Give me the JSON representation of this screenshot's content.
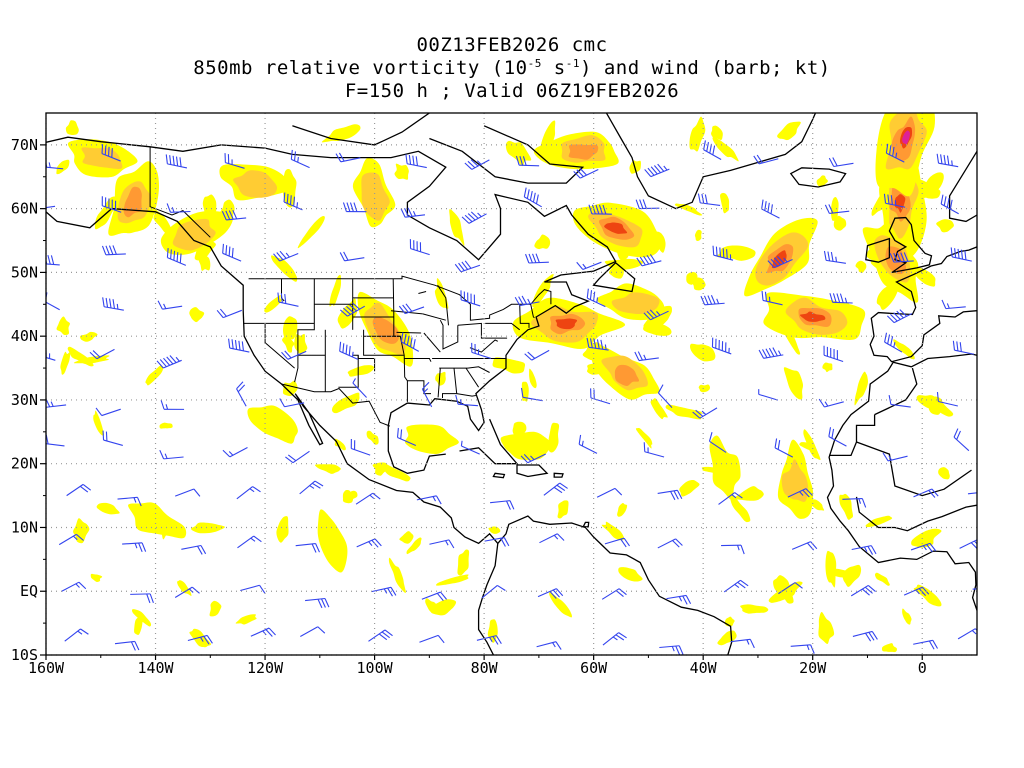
{
  "header": {
    "line1": "00Z13FEB2026 cmc",
    "line2_pre": "850mb relative vorticity (10",
    "line2_exp1": "-5",
    "line2_mid": " s",
    "line2_exp2": "-1",
    "line2_post": ") and wind (barb; kt)",
    "line3": "F=150 h ; Valid 06Z19FEB2026"
  },
  "axes": {
    "lat_labels": [
      "70N",
      "60N",
      "50N",
      "40N",
      "30N",
      "20N",
      "10N",
      "EQ",
      "10S"
    ],
    "lat_values": [
      70,
      60,
      50,
      40,
      30,
      20,
      10,
      0,
      -10
    ],
    "lon_labels": [
      "160W",
      "140W",
      "120W",
      "100W",
      "80W",
      "60W",
      "40W",
      "20W",
      "0"
    ],
    "lon_values": [
      -160,
      -140,
      -120,
      -100,
      -80,
      -60,
      -40,
      -20,
      0
    ],
    "lon_range": [
      -160,
      10
    ],
    "lat_range": [
      -10,
      75
    ],
    "grid": "dotted"
  },
  "colors": {
    "shade_light": "#ffff00",
    "shade_mid": "#ffcc33",
    "shade_orange": "#ff9933",
    "shade_red": "#ee4411",
    "shade_magenta": "#dd2299",
    "barb": "#3344ee",
    "coast": "#000000",
    "grid": "#999999"
  },
  "vorticity_maxima": [
    {
      "lon": -150,
      "lat": 68,
      "level": 2
    },
    {
      "lon": -144,
      "lat": 61,
      "level": 3
    },
    {
      "lon": -133,
      "lat": 56,
      "level": 2
    },
    {
      "lon": -122,
      "lat": 64,
      "level": 2
    },
    {
      "lon": -100,
      "lat": 62,
      "level": 2
    },
    {
      "lon": -98,
      "lat": 41,
      "level": 3
    },
    {
      "lon": -65,
      "lat": 42,
      "level": 4
    },
    {
      "lon": -62,
      "lat": 69,
      "level": 3
    },
    {
      "lon": -56,
      "lat": 57,
      "level": 4
    },
    {
      "lon": -52,
      "lat": 45,
      "level": 2
    },
    {
      "lon": -54,
      "lat": 34,
      "level": 3
    },
    {
      "lon": -26,
      "lat": 52,
      "level": 4
    },
    {
      "lon": -20,
      "lat": 43,
      "level": 4
    },
    {
      "lon": -4,
      "lat": 61,
      "level": 4
    },
    {
      "lon": -3,
      "lat": 71,
      "level": 5
    },
    {
      "lon": -5,
      "lat": 52,
      "level": 3
    },
    {
      "lon": -23,
      "lat": 17,
      "level": 2
    },
    {
      "lon": -36,
      "lat": 19,
      "level": 1
    },
    {
      "lon": -72,
      "lat": 23,
      "level": 1
    },
    {
      "lon": -140,
      "lat": 11,
      "level": 1
    },
    {
      "lon": -108,
      "lat": 8,
      "level": 1
    },
    {
      "lon": -118,
      "lat": 26,
      "level": 1
    },
    {
      "lon": -90,
      "lat": 24,
      "level": 1
    }
  ]
}
